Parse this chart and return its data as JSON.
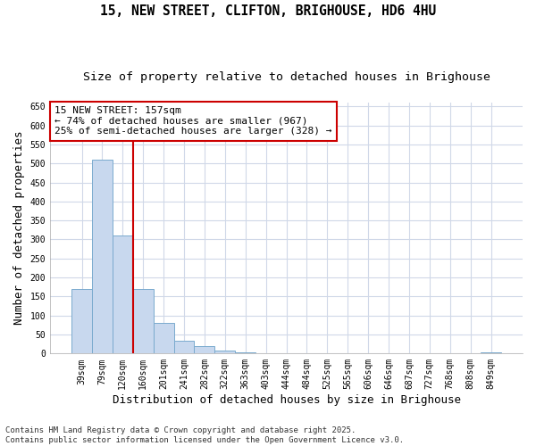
{
  "title_line1": "15, NEW STREET, CLIFTON, BRIGHOUSE, HD6 4HU",
  "title_line2": "Size of property relative to detached houses in Brighouse",
  "xlabel": "Distribution of detached houses by size in Brighouse",
  "ylabel": "Number of detached properties",
  "bar_labels": [
    "39sqm",
    "79sqm",
    "120sqm",
    "160sqm",
    "201sqm",
    "241sqm",
    "282sqm",
    "322sqm",
    "363sqm",
    "403sqm",
    "444sqm",
    "484sqm",
    "525sqm",
    "565sqm",
    "606sqm",
    "646sqm",
    "687sqm",
    "727sqm",
    "768sqm",
    "808sqm",
    "849sqm"
  ],
  "bar_values": [
    170,
    510,
    310,
    170,
    80,
    33,
    20,
    8,
    3,
    0,
    0,
    0,
    0,
    0,
    0,
    0,
    0,
    0,
    0,
    0,
    3
  ],
  "bar_color": "#c8d8ee",
  "bar_edge_color": "#7aaace",
  "vline_color": "#cc0000",
  "annotation_text": "15 NEW STREET: 157sqm\n← 74% of detached houses are smaller (967)\n25% of semi-detached houses are larger (328) →",
  "annotation_box_color": "#cc0000",
  "annotation_fill": "white",
  "ylim": [
    0,
    660
  ],
  "yticks": [
    0,
    50,
    100,
    150,
    200,
    250,
    300,
    350,
    400,
    450,
    500,
    550,
    600,
    650
  ],
  "footnote": "Contains HM Land Registry data © Crown copyright and database right 2025.\nContains public sector information licensed under the Open Government Licence v3.0.",
  "bg_color": "#ffffff",
  "plot_bg_color": "#ffffff",
  "grid_color": "#d0d8e8",
  "title_fontsize": 10.5,
  "subtitle_fontsize": 9.5,
  "axis_label_fontsize": 9,
  "tick_fontsize": 7,
  "annotation_fontsize": 8,
  "footnote_fontsize": 6.5
}
